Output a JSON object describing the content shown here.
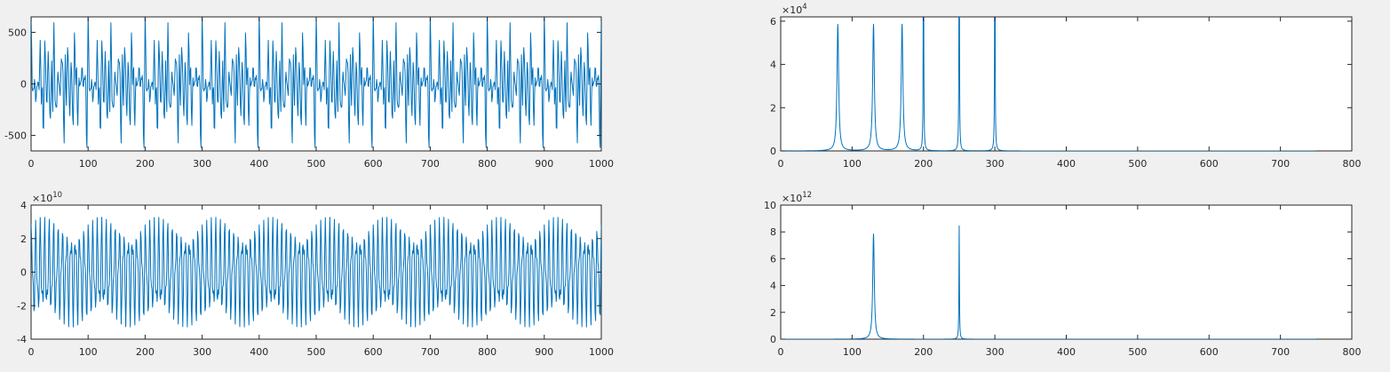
{
  "window": {
    "background": "#f0f0f0",
    "line_color": "#0072bd"
  },
  "chart_data": [
    {
      "id": "time-signal",
      "type": "line",
      "xlim": [
        0,
        1000
      ],
      "ylim": [
        -650,
        650
      ],
      "x_ticks": [
        0,
        100,
        200,
        300,
        400,
        500,
        600,
        700,
        800,
        900,
        1000
      ],
      "x_tick_labels": [
        "0",
        "100",
        "200",
        "300",
        "400",
        "500",
        "600",
        "700",
        "800",
        "900",
        "1000"
      ],
      "y_ticks": [
        -500,
        0,
        500
      ],
      "y_tick_labels": [
        "-500",
        "0",
        "500"
      ],
      "y_exponent": "",
      "grid": false,
      "signal": {
        "n_points": 1000,
        "components": [
          {
            "amplitude": 150,
            "frequency": 0.08
          },
          {
            "amplitude": 150,
            "frequency": 0.13
          },
          {
            "amplitude": 150,
            "frequency": 0.17
          },
          {
            "amplitude": 150,
            "frequency": 0.2
          },
          {
            "amplitude": 110,
            "frequency": 0.25
          },
          {
            "amplitude": 90,
            "frequency": 0.3
          }
        ]
      },
      "series": [
        {
          "color": "#0072bd"
        }
      ]
    },
    {
      "id": "spectrum-1",
      "type": "line",
      "xlim": [
        0,
        800
      ],
      "ylim": [
        0,
        62000
      ],
      "x_ticks": [
        0,
        100,
        200,
        300,
        400,
        500,
        600,
        700,
        800
      ],
      "x_tick_labels": [
        "0",
        "100",
        "200",
        "300",
        "400",
        "500",
        "600",
        "700",
        "800"
      ],
      "y_ticks": [
        0,
        20000,
        40000,
        60000
      ],
      "y_tick_labels": [
        "0",
        "2",
        "4",
        "6"
      ],
      "y_exponent": "×10",
      "y_exponent_power": "4",
      "grid": false,
      "spectrum": {
        "x_max": 750,
        "peaks": [
          {
            "x": 80,
            "height": 58500,
            "width": 1.4
          },
          {
            "x": 130,
            "height": 58500,
            "width": 1.4
          },
          {
            "x": 170,
            "height": 58500,
            "width": 1.4
          },
          {
            "x": 200,
            "height": 150000,
            "width": 0.35
          },
          {
            "x": 250,
            "height": 150000,
            "width": 0.35
          },
          {
            "x": 300,
            "height": 150000,
            "width": 0.35
          }
        ]
      },
      "series": [
        {
          "color": "#0072bd"
        }
      ]
    },
    {
      "id": "time-signal-2",
      "type": "line",
      "xlim": [
        0,
        1000
      ],
      "ylim": [
        -40000000000,
        40000000000
      ],
      "x_ticks": [
        0,
        100,
        200,
        300,
        400,
        500,
        600,
        700,
        800,
        900,
        1000
      ],
      "x_tick_labels": [
        "0",
        "100",
        "200",
        "300",
        "400",
        "500",
        "600",
        "700",
        "800",
        "900",
        "1000"
      ],
      "y_ticks": [
        -40000000000,
        -20000000000,
        0,
        20000000000,
        40000000000
      ],
      "y_tick_labels": [
        "-4",
        "-2",
        "0",
        "2",
        "4"
      ],
      "y_exponent": "×10",
      "y_exponent_power": "10",
      "grid": false,
      "signal": {
        "n_points": 1000,
        "components": [
          {
            "amplitude": 22000000000,
            "frequency": 0.13
          },
          {
            "amplitude": 11000000000,
            "frequency": 0.25
          }
        ]
      },
      "series": [
        {
          "color": "#0072bd"
        }
      ]
    },
    {
      "id": "spectrum-2",
      "type": "line",
      "xlim": [
        0,
        800
      ],
      "ylim": [
        0,
        10000000000000
      ],
      "x_ticks": [
        0,
        100,
        200,
        300,
        400,
        500,
        600,
        700,
        800
      ],
      "x_tick_labels": [
        "0",
        "100",
        "200",
        "300",
        "400",
        "500",
        "600",
        "700",
        "800"
      ],
      "y_ticks": [
        0,
        2000000000000,
        4000000000000,
        6000000000000,
        8000000000000,
        10000000000000
      ],
      "y_tick_labels": [
        "0",
        "2",
        "4",
        "6",
        "8",
        "10"
      ],
      "y_exponent": "×10",
      "y_exponent_power": "12",
      "grid": false,
      "spectrum": {
        "x_max": 750,
        "peaks": [
          {
            "x": 130,
            "height": 7850000000000,
            "width": 1.3
          },
          {
            "x": 250,
            "height": 8450000000000,
            "width": 0.4
          }
        ]
      },
      "series": [
        {
          "color": "#0072bd"
        }
      ]
    }
  ]
}
